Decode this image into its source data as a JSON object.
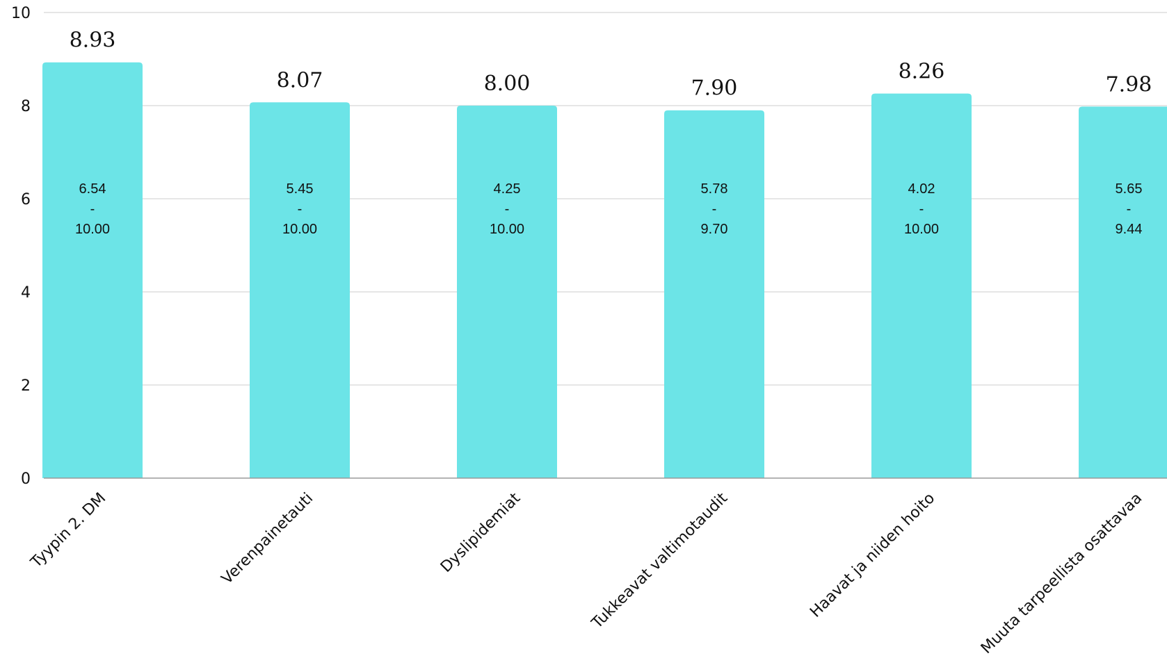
{
  "chart_data": {
    "type": "bar",
    "title": "",
    "xlabel": "",
    "ylabel": "",
    "ylim": [
      0,
      10
    ],
    "yticks": [
      "0",
      "2",
      "4",
      "6",
      "8",
      "10"
    ],
    "grid": true,
    "bar_color": "#6ce4e7",
    "categories": [
      "Tyypin 2. DM",
      "Verenpainetauti",
      "Dyslipidemiat",
      "Tukkeavat valtimotaudit",
      "Haavat ja niiden hoito",
      "Muuta tarpeellista osattavaa"
    ],
    "values": [
      8.93,
      8.07,
      8.0,
      7.9,
      8.26,
      7.98
    ],
    "value_labels": [
      "8.93",
      "8.07",
      "8.00",
      "7.90",
      "8.26",
      "7.98"
    ],
    "ranges": [
      {
        "min": "6.54",
        "sep": "-",
        "max": "10.00"
      },
      {
        "min": "5.45",
        "sep": "-",
        "max": "10.00"
      },
      {
        "min": "4.25",
        "sep": "-",
        "max": "10.00"
      },
      {
        "min": "5.78",
        "sep": "-",
        "max": "9.70"
      },
      {
        "min": "4.02",
        "sep": "-",
        "max": "10.00"
      },
      {
        "min": "5.65",
        "sep": "-",
        "max": "9.44"
      }
    ]
  }
}
